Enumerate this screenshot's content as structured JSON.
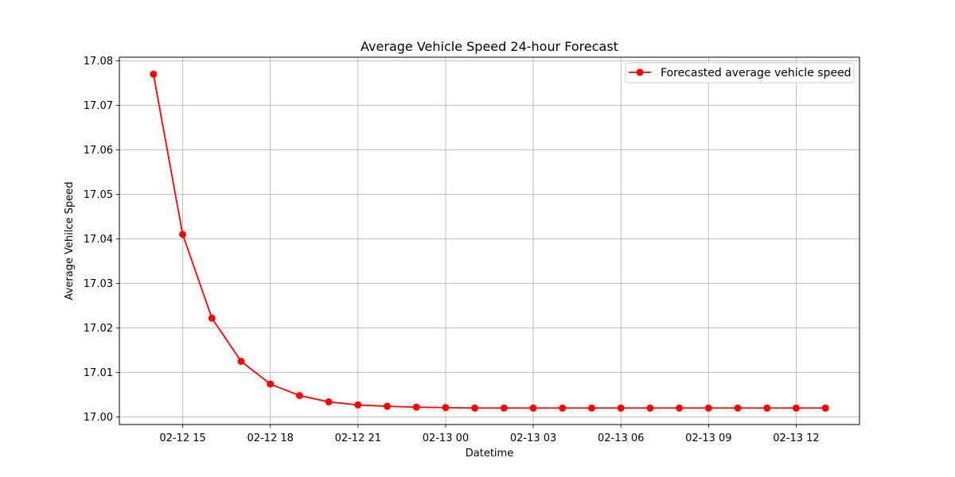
{
  "chart_data": {
    "type": "line",
    "title": "Average Vehicle Speed 24-hour Forecast",
    "xlabel": "Datetime",
    "ylabel": "Average Vehilce Speed",
    "x_hours": [
      "2024-02-12 14:00",
      "2024-02-12 15:00",
      "2024-02-12 16:00",
      "2024-02-12 17:00",
      "2024-02-12 18:00",
      "2024-02-12 19:00",
      "2024-02-12 20:00",
      "2024-02-12 21:00",
      "2024-02-12 22:00",
      "2024-02-12 23:00",
      "2024-02-13 00:00",
      "2024-02-13 01:00",
      "2024-02-13 02:00",
      "2024-02-13 03:00",
      "2024-02-13 04:00",
      "2024-02-13 05:00",
      "2024-02-13 06:00",
      "2024-02-13 07:00",
      "2024-02-13 08:00",
      "2024-02-13 09:00",
      "2024-02-13 10:00",
      "2024-02-13 11:00",
      "2024-02-13 12:00",
      "2024-02-13 13:00"
    ],
    "xlim": [
      "2024-02-12 12:50",
      "2024-02-13 14:10"
    ],
    "ylim": [
      16.9983,
      17.0808
    ],
    "xticks": [
      "02-12 15",
      "02-12 18",
      "02-12 21",
      "02-13 00",
      "02-13 03",
      "02-13 06",
      "02-13 09",
      "02-13 12"
    ],
    "xtick_hours": [
      "2024-02-12 15:00",
      "2024-02-12 18:00",
      "2024-02-12 21:00",
      "2024-02-13 00:00",
      "2024-02-13 03:00",
      "2024-02-13 06:00",
      "2024-02-13 09:00",
      "2024-02-13 12:00"
    ],
    "yticks": [
      "17.00",
      "17.01",
      "17.02",
      "17.03",
      "17.04",
      "17.05",
      "17.06",
      "17.07",
      "17.08"
    ],
    "ytick_values": [
      17.0,
      17.01,
      17.02,
      17.03,
      17.04,
      17.05,
      17.06,
      17.07,
      17.08
    ],
    "grid": true,
    "legend_position": "top-right",
    "series": [
      {
        "name": "Forecasted average vehicle speed",
        "color": "#ff0000",
        "marker": "circle",
        "values": [
          17.077,
          17.041,
          17.0222,
          17.0125,
          17.0074,
          17.0048,
          17.0034,
          17.0027,
          17.0024,
          17.0022,
          17.0021,
          17.002,
          17.002,
          17.002,
          17.002,
          17.002,
          17.002,
          17.002,
          17.002,
          17.002,
          17.002,
          17.002,
          17.002,
          17.002
        ]
      }
    ]
  }
}
